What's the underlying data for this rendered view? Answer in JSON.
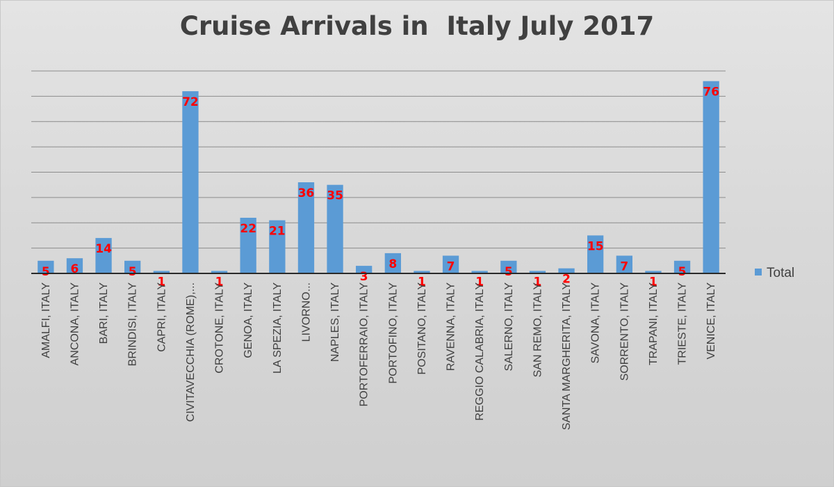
{
  "chart_data": {
    "type": "bar",
    "title": "Cruise Arrivals in  Italy July 2017",
    "xlabel": "",
    "ylabel": "",
    "ylim": [
      0,
      80
    ],
    "grid": true,
    "legend_position": "right",
    "categories": [
      "AMALFI, ITALY",
      "ANCONA, ITALY",
      "BARI, ITALY",
      "BRINDISI, ITALY",
      "CAPRI, ITALY",
      "CIVITAVECCHIA (ROME),...",
      "CROTONE, ITALY",
      "GENOA, ITALY",
      "LA SPEZIA, ITALY",
      "LIVORNO...",
      "NAPLES, ITALY",
      "PORTOFERRAIO, ITALY",
      "PORTOFINO, ITALY",
      "POSITANO, ITALY",
      "RAVENNA, ITALY",
      "REGGIO CALABRIA, ITALY",
      "SALERNO, ITALY",
      "SAN REMO, ITALY",
      "SANTA MARGHERITA, ITALY",
      "SAVONA, ITALY",
      "SORRENTO, ITALY",
      "TRAPANI, ITALY",
      "TRIESTE, ITALY",
      "VENICE, ITALY"
    ],
    "series": [
      {
        "name": "Total",
        "color": "#5b9bd5",
        "values": [
          5,
          6,
          14,
          5,
          1,
          72,
          1,
          22,
          21,
          36,
          35,
          3,
          8,
          1,
          7,
          1,
          5,
          1,
          2,
          15,
          7,
          1,
          5,
          76
        ]
      }
    ],
    "data_label_color": "#ff0000"
  }
}
